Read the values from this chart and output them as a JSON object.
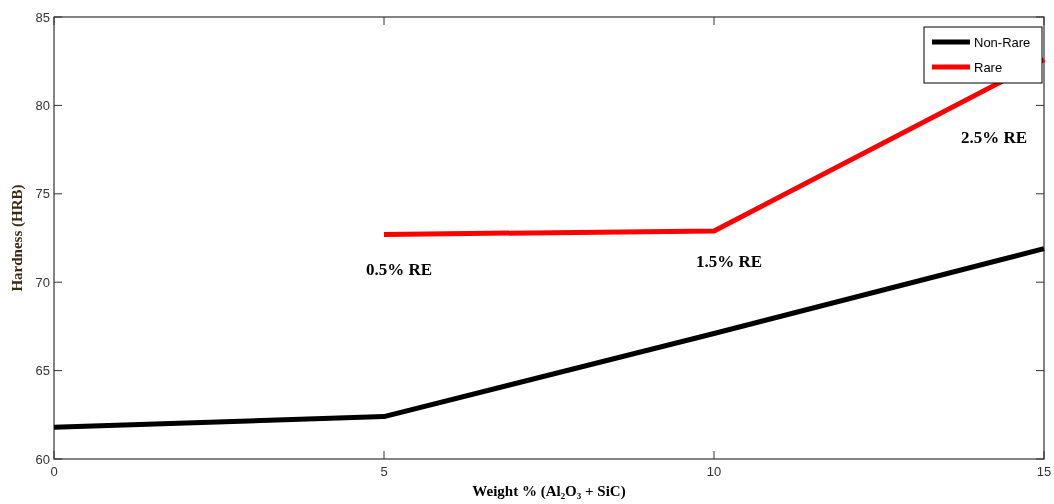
{
  "chart_data": {
    "type": "line",
    "xlabel": "Weight % (Al₂O₃ + SiC)",
    "ylabel": "Hardness (HRB)",
    "x": [
      0,
      5,
      10,
      15
    ],
    "series": [
      {
        "name": "Non-Rare",
        "color": "#000000",
        "values": [
          61.8,
          62.4,
          67.1,
          71.9
        ]
      },
      {
        "name": "Rare",
        "color": "#ff0000",
        "values": [
          null,
          72.7,
          72.9,
          82.6
        ]
      }
    ],
    "xlim": [
      0,
      15
    ],
    "xticks": [
      0,
      5,
      10,
      15
    ],
    "ylim": [
      60,
      85
    ],
    "yticks": [
      60,
      65,
      70,
      75,
      80,
      85
    ],
    "grid": false,
    "legend": "top right",
    "marker": "none",
    "line_style": "solid",
    "annotations": [
      "0.5% RE",
      "1.5% RE",
      "2.5% RE"
    ]
  }
}
